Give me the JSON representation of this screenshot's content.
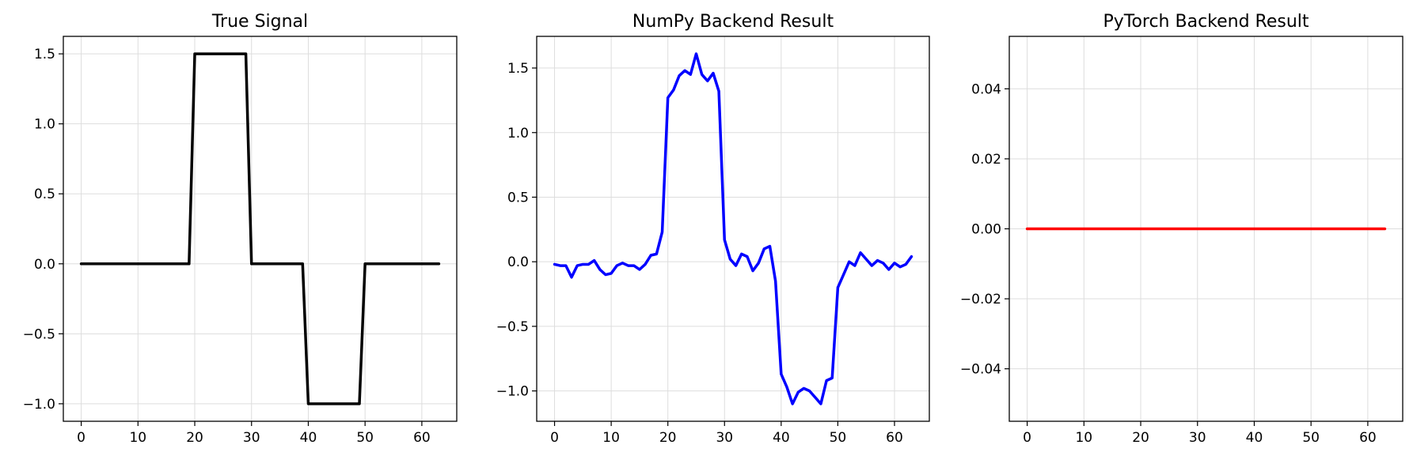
{
  "chart_data": [
    {
      "type": "line",
      "title": "True Signal",
      "xlabel": "",
      "ylabel": "",
      "xlim": [
        -3.15,
        66.15
      ],
      "ylim": [
        -1.125,
        1.625
      ],
      "xticks": [
        0,
        10,
        20,
        30,
        40,
        50,
        60
      ],
      "xtick_labels": [
        "0",
        "10",
        "20",
        "30",
        "40",
        "50",
        "60"
      ],
      "yticks": [
        -1.0,
        -0.5,
        0.0,
        0.5,
        1.0,
        1.5
      ],
      "ytick_labels": [
        "−1.0",
        "−0.5",
        "0.0",
        "0.5",
        "1.0",
        "1.5"
      ],
      "grid": true,
      "series": [
        {
          "color": "#000000",
          "x": [
            0,
            19,
            20,
            29,
            30,
            39,
            40,
            49,
            50,
            63
          ],
          "y": [
            0,
            0,
            1.5,
            1.5,
            0,
            0,
            -1.0,
            -1.0,
            0,
            0
          ]
        }
      ]
    },
    {
      "type": "line",
      "title": "NumPy Backend Result",
      "xlabel": "",
      "ylabel": "",
      "xlim": [
        -3.15,
        66.15
      ],
      "ylim": [
        -1.235,
        1.745
      ],
      "xticks": [
        0,
        10,
        20,
        30,
        40,
        50,
        60
      ],
      "xtick_labels": [
        "0",
        "10",
        "20",
        "30",
        "40",
        "50",
        "60"
      ],
      "yticks": [
        -1.0,
        -0.5,
        0.0,
        0.5,
        1.0,
        1.5
      ],
      "ytick_labels": [
        "−1.0",
        "−0.5",
        "0.0",
        "0.5",
        "1.0",
        "1.5"
      ],
      "grid": true,
      "series": [
        {
          "color": "#0000ff",
          "x": [
            0,
            1,
            2,
            3,
            4,
            5,
            6,
            7,
            8,
            9,
            10,
            11,
            12,
            13,
            14,
            15,
            16,
            17,
            18,
            19,
            20,
            21,
            22,
            23,
            24,
            25,
            26,
            27,
            28,
            29,
            30,
            31,
            32,
            33,
            34,
            35,
            36,
            37,
            38,
            39,
            40,
            41,
            42,
            43,
            44,
            45,
            46,
            47,
            48,
            49,
            50,
            51,
            52,
            53,
            54,
            55,
            56,
            57,
            58,
            59,
            60,
            61,
            62,
            63
          ],
          "y": [
            -0.02,
            -0.03,
            -0.03,
            -0.12,
            -0.03,
            -0.02,
            -0.02,
            0.01,
            -0.06,
            -0.1,
            -0.09,
            -0.03,
            -0.01,
            -0.03,
            -0.03,
            -0.06,
            -0.02,
            0.05,
            0.06,
            0.23,
            1.27,
            1.33,
            1.44,
            1.48,
            1.45,
            1.61,
            1.45,
            1.4,
            1.46,
            1.32,
            0.17,
            0.02,
            -0.03,
            0.06,
            0.04,
            -0.07,
            -0.01,
            0.1,
            0.12,
            -0.15,
            -0.87,
            -0.97,
            -1.1,
            -1.01,
            -0.98,
            -1.0,
            -1.05,
            -1.1,
            -0.92,
            -0.9,
            -0.2,
            -0.1,
            0.0,
            -0.03,
            0.07,
            0.02,
            -0.03,
            0.01,
            -0.01,
            -0.06,
            -0.01,
            -0.04,
            -0.02,
            0.04
          ]
        }
      ]
    },
    {
      "type": "line",
      "title": "PyTorch Backend Result",
      "xlabel": "",
      "ylabel": "",
      "xlim": [
        -3.15,
        66.15
      ],
      "ylim": [
        -0.055,
        0.055
      ],
      "xticks": [
        0,
        10,
        20,
        30,
        40,
        50,
        60
      ],
      "xtick_labels": [
        "0",
        "10",
        "20",
        "30",
        "40",
        "50",
        "60"
      ],
      "yticks": [
        -0.04,
        -0.02,
        0.0,
        0.02,
        0.04
      ],
      "ytick_labels": [
        "−0.04",
        "−0.02",
        "0.00",
        "0.02",
        "0.04"
      ],
      "grid": true,
      "series": [
        {
          "color": "#ff0000",
          "x": [
            0,
            63
          ],
          "y": [
            0,
            0
          ]
        }
      ]
    }
  ]
}
